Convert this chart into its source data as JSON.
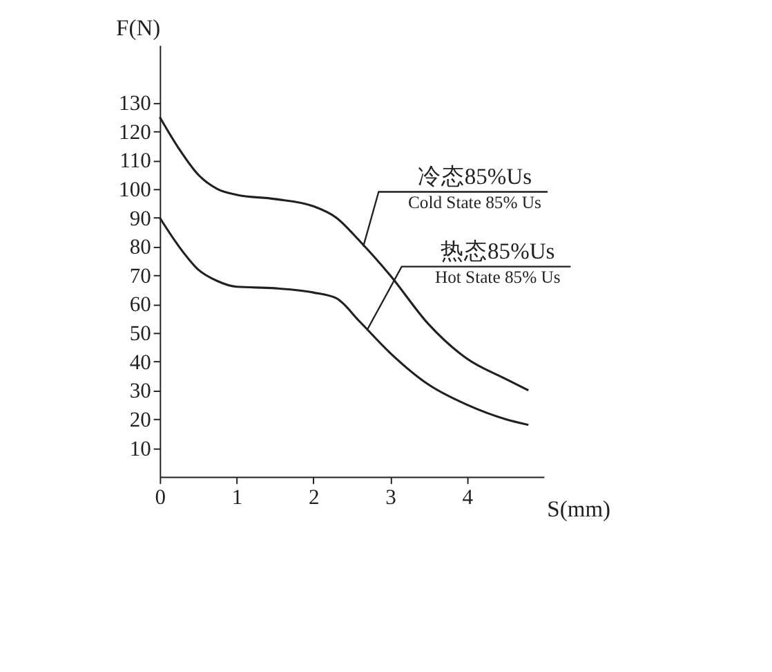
{
  "chart_data": {
    "type": "line",
    "xlabel": "S(mm)",
    "ylabel": "F(N)",
    "xlim": [
      0,
      5
    ],
    "xticks": [
      0,
      1,
      2,
      3,
      4
    ],
    "ylim": [
      0,
      150
    ],
    "yticks": [
      10,
      20,
      30,
      40,
      50,
      60,
      70,
      80,
      90,
      100,
      110,
      120,
      130
    ],
    "grid": false,
    "marker": "none",
    "line_style": "solid",
    "series": [
      {
        "color": "#231f20",
        "x": [
          0,
          0.25,
          0.5,
          0.75,
          1,
          1.5,
          2,
          2.3,
          2.6,
          3,
          3.5,
          4,
          4.5,
          4.8
        ],
        "values": [
          125,
          114,
          105,
          100,
          98,
          96.5,
          94,
          90,
          82,
          70,
          53,
          41,
          34,
          30
        ]
      },
      {
        "color": "#231f20",
        "x": [
          0,
          0.25,
          0.5,
          0.75,
          1,
          1.5,
          2,
          2.3,
          2.6,
          3,
          3.5,
          4,
          4.5,
          4.8
        ],
        "values": [
          90,
          80,
          72,
          68,
          66,
          65.5,
          64,
          62,
          54,
          43,
          32,
          25,
          20,
          18
        ]
      }
    ],
    "annotations": [
      {
        "text": "冷态85%Us\nCold State 85% Us",
        "x": 2.65,
        "y": 80
      },
      {
        "text": "热态85%Us\nHot State 85% Us",
        "x": 2.7,
        "y": 51
      }
    ]
  }
}
